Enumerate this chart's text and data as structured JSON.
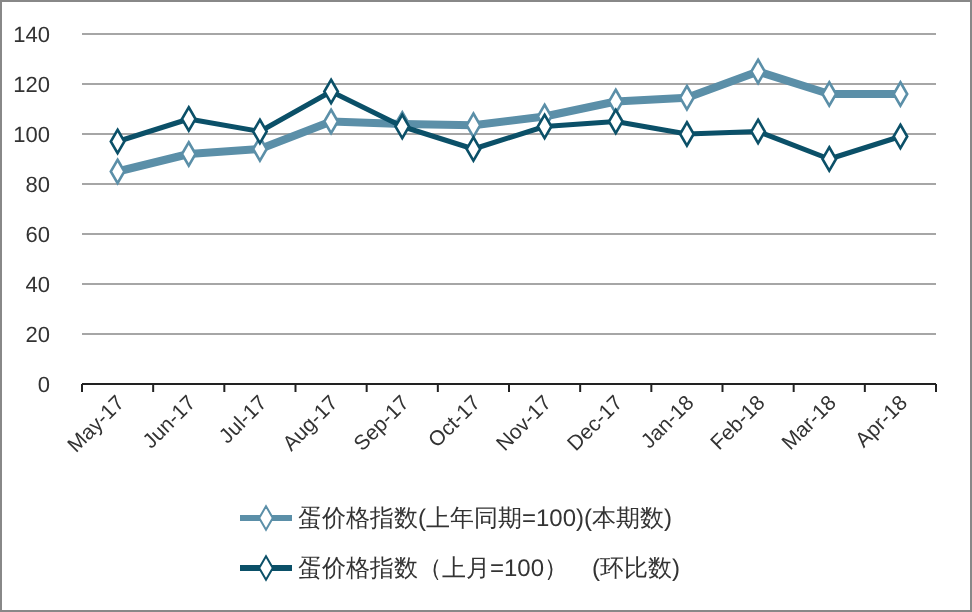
{
  "chart_data": {
    "type": "line",
    "categories": [
      "May-17",
      "Jun-17",
      "Jul-17",
      "Aug-17",
      "Sep-17",
      "Oct-17",
      "Nov-17",
      "Dec-17",
      "Jan-18",
      "Feb-18",
      "Mar-18",
      "Apr-18"
    ],
    "series": [
      {
        "name": "蛋价格指数(上年同期=100)(本期数)",
        "color": "#5b8fa8",
        "values": [
          85,
          92,
          94,
          105,
          104,
          103.5,
          107,
          113,
          114.5,
          125,
          116,
          116
        ]
      },
      {
        "name": "蛋价格指数（上月=100）　(环比数)",
        "color": "#0b5068",
        "values": [
          97,
          106,
          101,
          117,
          103,
          94,
          103,
          105,
          100,
          101,
          90,
          99
        ]
      }
    ],
    "ylim": [
      0,
      140
    ],
    "yticks": [
      0,
      20,
      40,
      60,
      80,
      100,
      120,
      140
    ],
    "grid": "y",
    "legend": "bottom",
    "marker": "diamond",
    "line_style": "solid"
  }
}
